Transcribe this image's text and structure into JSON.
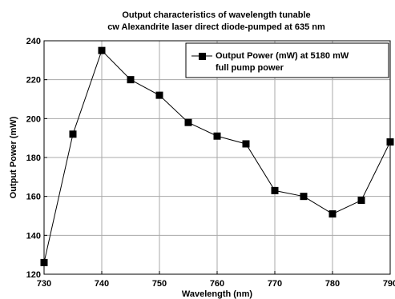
{
  "chart_data": {
    "type": "line",
    "title": [
      "Output characteristics of wavelength tunable",
      "cw Alexandrite laser direct diode-pumped at 635 nm"
    ],
    "xlabel": "Wavelength (nm)",
    "ylabel": "Output Power (mW)",
    "xlim": [
      730,
      790
    ],
    "ylim": [
      120,
      240
    ],
    "xticks": [
      730,
      740,
      750,
      760,
      770,
      780,
      790
    ],
    "yticks": [
      120,
      140,
      160,
      180,
      200,
      220,
      240
    ],
    "grid": true,
    "legend_position": "top-right",
    "series": [
      {
        "name": "Output Power (mW) at 5180 mW full pump power",
        "legend_lines": [
          "Output Power (mW) at 5180 mW",
          "full pump power"
        ],
        "color": "#000000",
        "marker": "square",
        "x": [
          730,
          735,
          740,
          745,
          750,
          755,
          760,
          765,
          770,
          775,
          780,
          785,
          790
        ],
        "y": [
          126,
          192,
          235,
          220,
          212,
          198,
          191,
          187,
          163,
          160,
          151,
          158,
          188
        ]
      }
    ]
  }
}
